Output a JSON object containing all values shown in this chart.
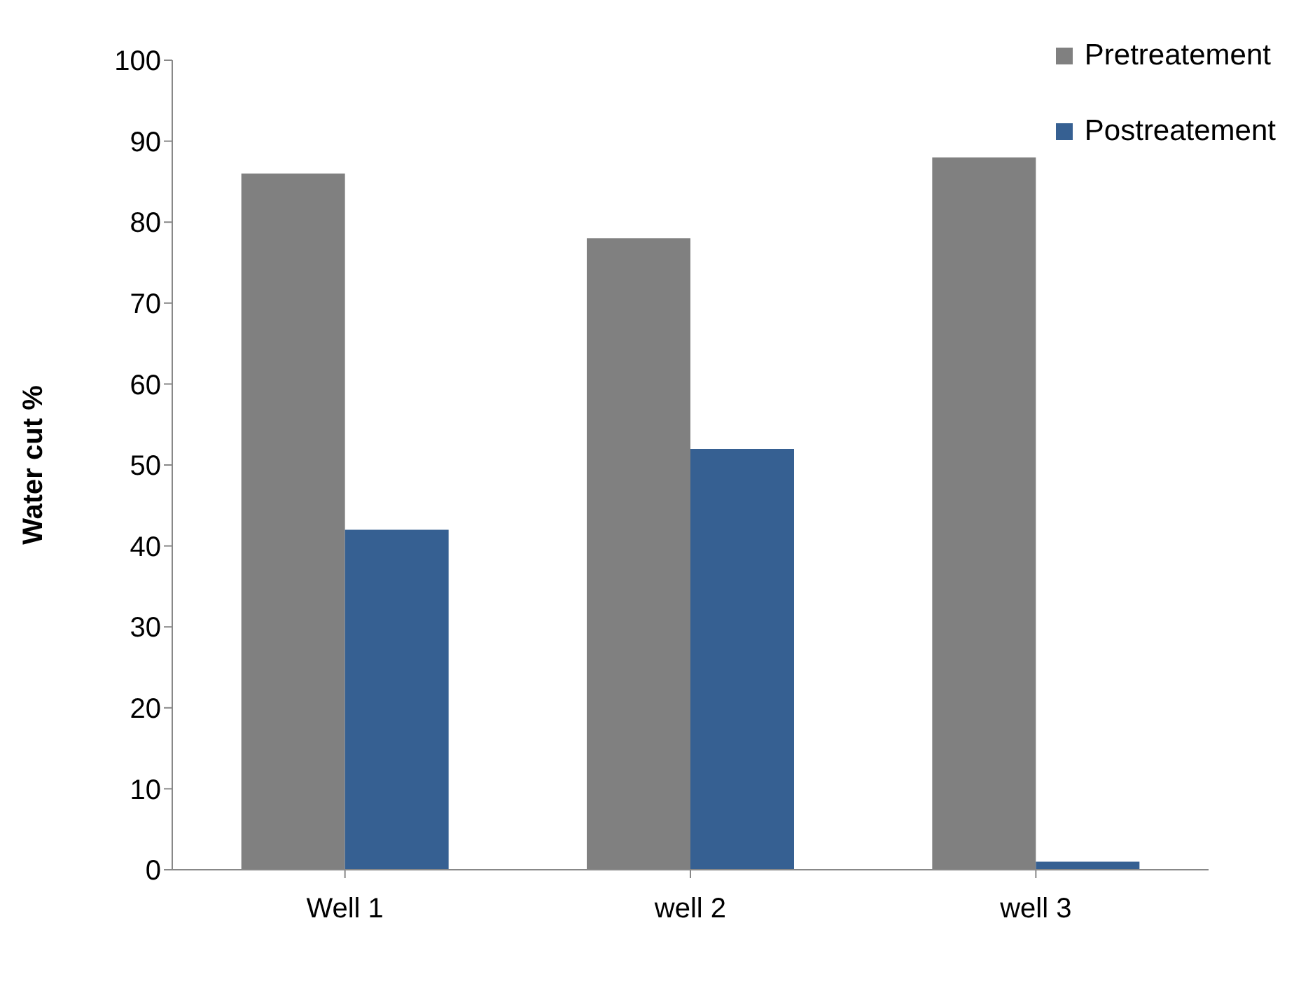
{
  "chart_data": {
    "type": "bar",
    "ylabel": "Water cut %",
    "categories": [
      "Well 1",
      "well 2",
      "well 3"
    ],
    "series": [
      {
        "name": "Pretreatement",
        "color": "#808080",
        "values": [
          86,
          78,
          88
        ]
      },
      {
        "name": "Postreatement",
        "color": "#366092",
        "values": [
          42,
          52,
          1
        ]
      }
    ],
    "ylim": [
      0,
      100
    ],
    "yticks": [
      0,
      10,
      20,
      30,
      40,
      50,
      60,
      70,
      80,
      90,
      100
    ],
    "grid": false,
    "legend": "top right"
  }
}
